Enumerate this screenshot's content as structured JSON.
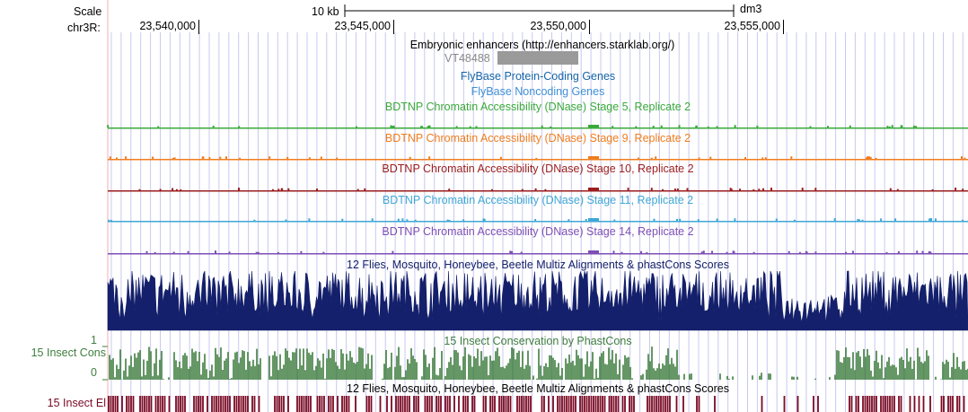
{
  "ruler": {
    "scale_label": "Scale",
    "scale_bar_label": "10 kb",
    "assembly": "dm3",
    "chrom_label": "chr3R:",
    "positions": [
      "23,540,000",
      "23,545,000",
      "23,550,000",
      "23,555,000"
    ]
  },
  "tracks": {
    "enhancers_title": "Embryonic enhancers (http://enhancers.starklab.org/)",
    "enhancer_item": "VT48488",
    "flybase_coding": "FlyBase Protein-Coding Genes",
    "flybase_noncoding": "FlyBase Noncoding Genes",
    "dnase": [
      {
        "label": "BDTNP Chromatin Accessibility (DNase) Stage 5, Replicate 2",
        "color": "#3aaa3a"
      },
      {
        "label": "BDTNP Chromatin Accessibility (DNase) Stage 9, Replicate 2",
        "color": "#f07d1e"
      },
      {
        "label": "BDTNP Chromatin Accessibility (DNase) Stage 10, Replicate 2",
        "color": "#9b1c1c"
      },
      {
        "label": "BDTNP Chromatin Accessibility (DNase) Stage 11, Replicate 2",
        "color": "#3fa7d6"
      },
      {
        "label": "BDTNP Chromatin Accessibility (DNase) Stage 14, Replicate 2",
        "color": "#7d4fb5"
      }
    ],
    "multiz_title": "12 Flies, Mosquito, Honeybee, Beetle Multiz Alignments & phastCons Scores",
    "phastcons_title": "15 Insect Conservation by PhastCons",
    "elements_title": "12 Flies, Mosquito, Honeybee, Beetle Multiz Alignments & phastCons Scores"
  },
  "left_labels": {
    "insect_cons": "15 Insect Cons",
    "insect_el": "15 Insect El",
    "axis_max": "1",
    "axis_min": "0"
  },
  "colors": {
    "coding_genes": "#1565a8",
    "noncoding_genes": "#3f8fd6",
    "multiz": "#14206b",
    "phastcons": "#3f7d3f",
    "elements": "#7a0a24",
    "enhancer_item": "#9a9a9a",
    "enhancer_label": "#888888",
    "guide_lines": "#c8c8f0",
    "left_border": "#f0b0b0"
  }
}
